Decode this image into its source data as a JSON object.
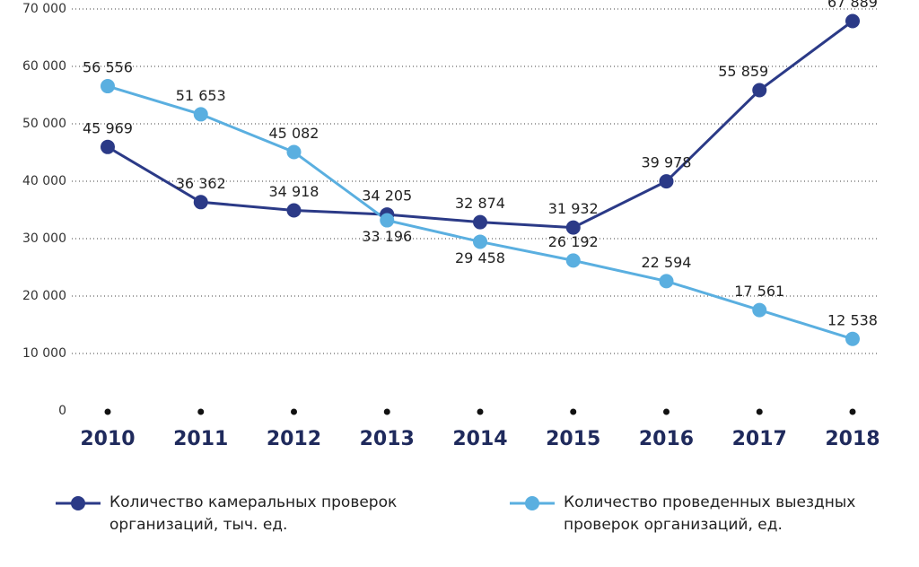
{
  "chart_data": {
    "type": "line",
    "categories": [
      "2010",
      "2011",
      "2012",
      "2013",
      "2014",
      "2015",
      "2016",
      "2017",
      "2018"
    ],
    "series": [
      {
        "name": "Количество камеральных проверок организаций, тыч. ед.",
        "color": "#2b3a87",
        "values": [
          45969,
          36362,
          34918,
          34205,
          32874,
          31932,
          39978,
          55859,
          67889
        ],
        "value_labels": [
          "45 969",
          "36 362",
          "34 918",
          "34 205",
          "32 874",
          "31 932",
          "39 978",
          "55 859",
          "67 889"
        ]
      },
      {
        "name": "Количество проведенных выездных проверок организаций, ед.",
        "color": "#5aafe0",
        "values": [
          56556,
          51653,
          45082,
          33196,
          29458,
          26192,
          22594,
          17561,
          12538
        ],
        "value_labels": [
          "56 556",
          "51 653",
          "45 082",
          "33 196",
          "29 458",
          "26 192",
          "22 594",
          "17 561",
          "12 538"
        ]
      }
    ],
    "ylim": [
      0,
      70000
    ],
    "yticks": [
      0,
      {
        "value": 10000,
        "label": "10 000"
      },
      {
        "value": 20000,
        "label": "20 000"
      },
      {
        "value": 30000,
        "label": "30 000"
      },
      {
        "value": 40000,
        "label": "40 000"
      },
      {
        "value": 50000,
        "label": "50 000"
      },
      {
        "value": 60000,
        "label": "60 000"
      },
      {
        "value": 70000,
        "label": "70 000"
      }
    ],
    "grid": true
  }
}
